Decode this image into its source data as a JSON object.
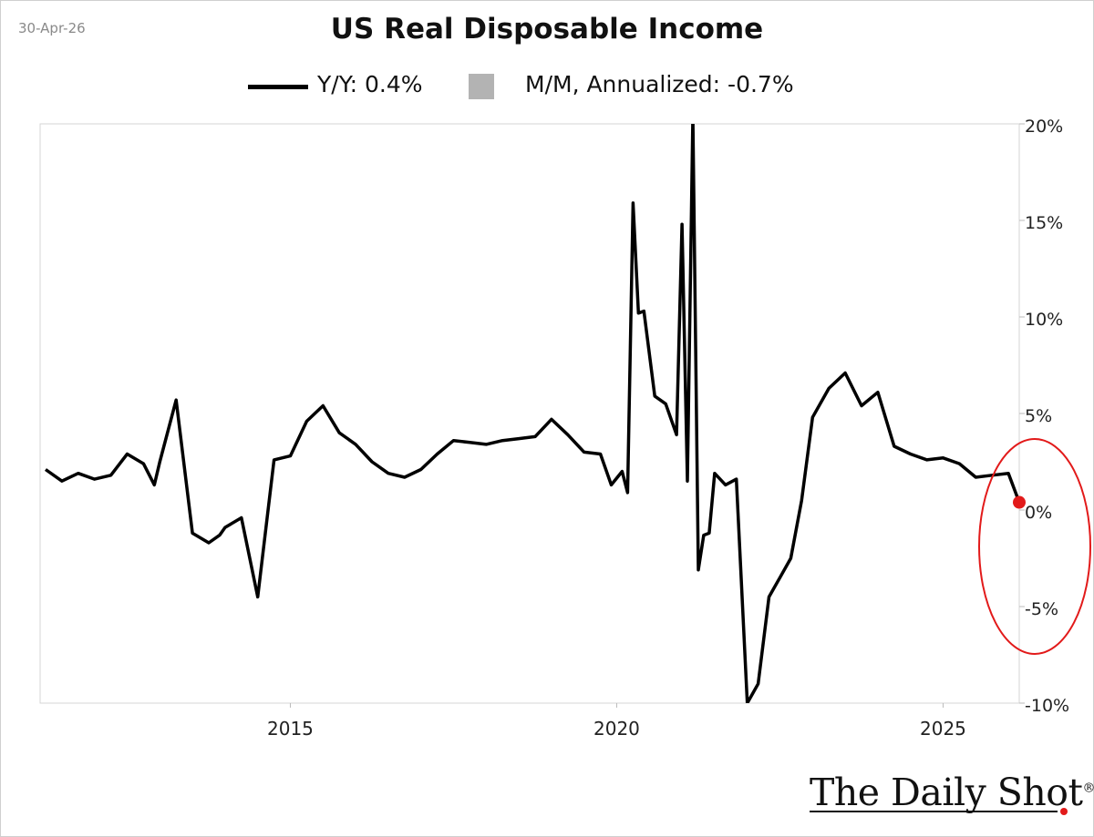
{
  "date_label": "30-Apr-26",
  "logo_text": "The Daily Shot",
  "logo_mark": "®",
  "chart_data": {
    "type": "bar+line",
    "title": "US Real Disposable Income",
    "series": [
      {
        "name": "Y/Y",
        "legend_label": "Y/Y: 0.4%",
        "type": "line",
        "color": "#000000",
        "x": [
          "2011-04",
          "2011-07",
          "2011-10",
          "2012-01",
          "2012-04",
          "2012-07",
          "2012-10",
          "2012-12",
          "2013-01",
          "2013-04",
          "2013-07",
          "2013-10",
          "2013-12",
          "2014-01",
          "2014-04",
          "2014-07",
          "2014-10",
          "2015-01",
          "2015-04",
          "2015-07",
          "2015-10",
          "2016-01",
          "2016-04",
          "2016-07",
          "2016-10",
          "2017-01",
          "2017-04",
          "2017-07",
          "2017-10",
          "2018-01",
          "2018-04",
          "2018-07",
          "2018-10",
          "2019-01",
          "2019-04",
          "2019-07",
          "2019-10",
          "2019-12",
          "2020-02",
          "2020-03",
          "2020-04",
          "2020-05",
          "2020-06",
          "2020-08",
          "2020-10",
          "2020-12",
          "2021-01",
          "2021-02",
          "2021-03",
          "2021-04",
          "2021-05",
          "2021-06",
          "2021-07",
          "2021-09",
          "2021-11",
          "2022-01",
          "2022-03",
          "2022-05",
          "2022-07",
          "2022-09",
          "2022-11",
          "2023-01",
          "2023-04",
          "2023-07",
          "2023-10",
          "2024-01",
          "2024-04",
          "2024-07",
          "2024-10",
          "2025-01",
          "2025-04",
          "2025-07",
          "2025-10",
          "2026-01",
          "2026-03"
        ],
        "values": [
          2.1,
          1.5,
          1.9,
          1.6,
          1.8,
          2.9,
          2.4,
          1.3,
          2.5,
          5.7,
          -1.2,
          -1.7,
          -1.3,
          -0.9,
          -0.4,
          -4.5,
          2.6,
          2.8,
          4.6,
          5.4,
          4.0,
          3.4,
          2.5,
          1.9,
          1.7,
          2.1,
          2.9,
          3.6,
          3.5,
          3.4,
          3.6,
          3.7,
          3.8,
          4.7,
          3.9,
          3.0,
          2.9,
          1.3,
          2.0,
          0.9,
          15.9,
          10.2,
          10.3,
          5.9,
          5.5,
          3.9,
          14.8,
          1.5,
          20.4,
          -3.1,
          -1.3,
          -1.2,
          1.9,
          1.3,
          1.6,
          -10.0,
          -9.0,
          -4.5,
          -3.5,
          -2.5,
          0.5,
          4.8,
          6.3,
          7.1,
          5.4,
          6.1,
          3.3,
          2.9,
          2.6,
          2.7,
          2.4,
          1.7,
          1.8,
          1.9,
          0.4
        ]
      },
      {
        "name": "M/M, Annualized",
        "legend_label": "M/M, Annualized: -0.7%",
        "type": "bar",
        "color": "#b3b3b3"
      }
    ],
    "y_axis": {
      "min": -10,
      "max": 20,
      "ticks": [
        20,
        15,
        10,
        5,
        0,
        -5,
        -10
      ],
      "tick_labels": [
        "20%",
        "15%",
        "10%",
        "5%",
        "0%",
        "-5%",
        "-10%"
      ],
      "position": "right"
    },
    "x_axis": {
      "min": "2011-03",
      "max": "2026-03",
      "ticks": [
        "2015",
        "2020",
        "2025"
      ]
    },
    "grid": false,
    "legend_position": "top-center",
    "annotation": {
      "type": "ellipse",
      "color": "#e21a1a",
      "marks": "latest observation"
    },
    "latest_point": {
      "x": "2026-03",
      "y": 0.4,
      "color": "#e21a1a"
    }
  }
}
